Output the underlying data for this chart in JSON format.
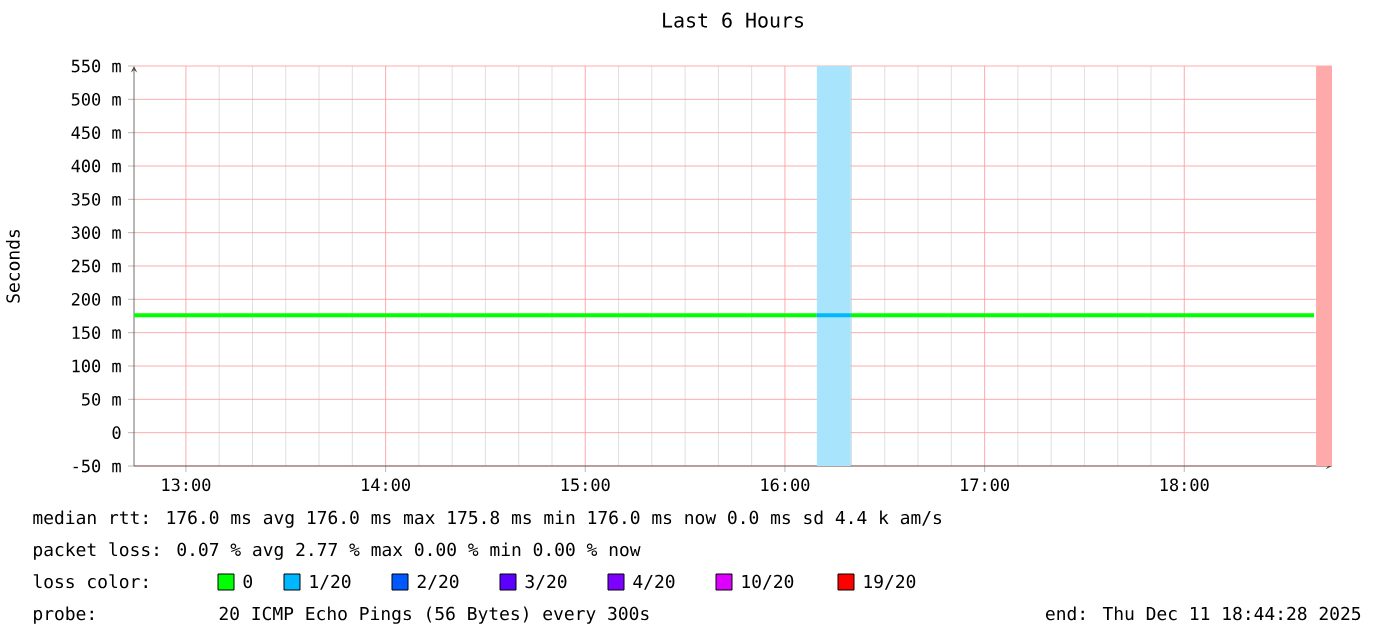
{
  "chart_data": {
    "type": "line",
    "title": "Last 6 Hours",
    "ylabel": "Seconds",
    "legend_title": "loss color:",
    "legend": "bottom",
    "grid": true,
    "xlim": [
      12.74,
      18.74
    ],
    "xticks": [
      {
        "value": 13,
        "label": "13:00"
      },
      {
        "value": 14,
        "label": "14:00"
      },
      {
        "value": 15,
        "label": "15:00"
      },
      {
        "value": 16,
        "label": "16:00"
      },
      {
        "value": 17,
        "label": "17:00"
      },
      {
        "value": 18,
        "label": "18:00"
      }
    ],
    "ylim": [
      -50,
      550
    ],
    "yticks": [
      {
        "value": -50,
        "label": "-50 m"
      },
      {
        "value": 0,
        "label": "0"
      },
      {
        "value": 50,
        "label": "50 m"
      },
      {
        "value": 100,
        "label": "100 m"
      },
      {
        "value": 150,
        "label": "150 m"
      },
      {
        "value": 200,
        "label": "200 m"
      },
      {
        "value": 250,
        "label": "250 m"
      },
      {
        "value": 300,
        "label": "300 m"
      },
      {
        "value": 350,
        "label": "350 m"
      },
      {
        "value": 400,
        "label": "400 m"
      },
      {
        "value": 450,
        "label": "450 m"
      },
      {
        "value": 500,
        "label": "500 m"
      },
      {
        "value": 550,
        "label": "550 m"
      }
    ],
    "series": [
      {
        "name": "0",
        "color": "#00ff00",
        "x": [
          12.74,
          16.16,
          16.17,
          16.33,
          18.65
        ],
        "values": [
          176,
          176,
          null,
          176,
          176
        ]
      },
      {
        "name": "1/20",
        "color": "#00b8ff",
        "x": [
          16.16,
          16.33
        ],
        "values": [
          176,
          176
        ]
      },
      {
        "name": "2/20",
        "color": "#0059ff"
      },
      {
        "name": "3/20",
        "color": "#5e00ff"
      },
      {
        "name": "4/20",
        "color": "#7e00ff"
      },
      {
        "name": "10/20",
        "color": "#dd00ff"
      },
      {
        "name": "19/20",
        "color": "#ff0000"
      }
    ],
    "bands": [
      {
        "axis": "x",
        "from": 16.16,
        "to": 16.33,
        "color": "#a8e4fb"
      },
      {
        "axis": "x",
        "from": 18.66,
        "to": 18.74,
        "color": "#ffaaaa"
      }
    ],
    "annotations": [
      "median rtt:  176.0 ms avg  176.0 ms max  175.8 ms min  176.0 ms now  0.0 ms sd  4.4 k am/s",
      "packet loss: 0.07 % avg  2.77 % max  0.00 % min  0.00 % now",
      "probe:",
      "20 ICMP Echo Pings (56 Bytes) every 300s",
      "end: Thu Dec 11 18:44:28 2025"
    ]
  }
}
